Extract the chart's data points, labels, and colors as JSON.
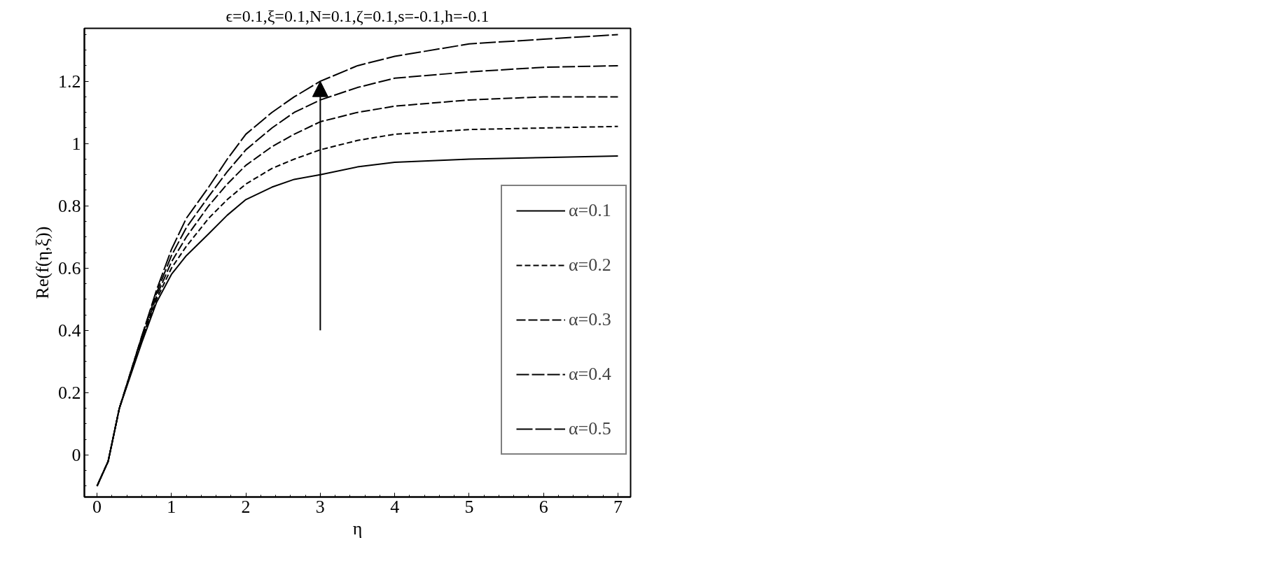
{
  "chart_data": {
    "type": "line",
    "title": "ϵ=0.1,ξ=0.1,N=0.1,ζ=0.1,s=-0.1,h=-0.1",
    "xlabel": "η",
    "ylabel": "Re(f(η,ξ))",
    "xlim": [
      -0.17,
      7.17
    ],
    "ylim": [
      -0.135,
      1.37
    ],
    "xticks": [
      0,
      1,
      2,
      3,
      4,
      5,
      6,
      7
    ],
    "yticks": [
      0,
      0.2,
      0.4,
      0.6,
      0.8,
      1,
      1.2
    ],
    "grid": false,
    "legend": "right",
    "marker": "none",
    "x": [
      0,
      0.15,
      0.3,
      0.6,
      0.8,
      1,
      1.2,
      1.5,
      1.75,
      2,
      2.35,
      2.65,
      3,
      3.5,
      4,
      5,
      6,
      7
    ],
    "series": [
      {
        "name": "α=0.1",
        "color": "#000000",
        "line_style": "solid",
        "values": [
          -0.1,
          -0.02,
          0.15,
          0.36,
          0.49,
          0.58,
          0.64,
          0.71,
          0.77,
          0.82,
          0.86,
          0.885,
          0.9,
          0.925,
          0.94,
          0.95,
          0.955,
          0.96
        ]
      },
      {
        "name": "α=0.2",
        "color": "#000000",
        "line_style": "dashed",
        "values": [
          -0.1,
          -0.02,
          0.15,
          0.37,
          0.5,
          0.6,
          0.67,
          0.76,
          0.82,
          0.87,
          0.92,
          0.95,
          0.98,
          1.01,
          1.03,
          1.045,
          1.05,
          1.055
        ]
      },
      {
        "name": "α=0.3",
        "color": "#000000",
        "line_style": "dashed",
        "values": [
          -0.1,
          -0.02,
          0.15,
          0.37,
          0.51,
          0.62,
          0.7,
          0.8,
          0.87,
          0.93,
          0.99,
          1.03,
          1.07,
          1.1,
          1.12,
          1.14,
          1.15,
          1.15
        ]
      },
      {
        "name": "α=0.4",
        "color": "#000000",
        "line_style": "dashed",
        "values": [
          -0.1,
          -0.02,
          0.15,
          0.38,
          0.52,
          0.64,
          0.73,
          0.83,
          0.91,
          0.98,
          1.05,
          1.1,
          1.14,
          1.18,
          1.21,
          1.23,
          1.245,
          1.25
        ]
      },
      {
        "name": "α=0.5",
        "color": "#000000",
        "line_style": "dashed",
        "values": [
          -0.1,
          -0.02,
          0.15,
          0.38,
          0.53,
          0.66,
          0.76,
          0.86,
          0.95,
          1.03,
          1.1,
          1.15,
          1.2,
          1.25,
          1.28,
          1.32,
          1.335,
          1.35
        ]
      }
    ]
  }
}
